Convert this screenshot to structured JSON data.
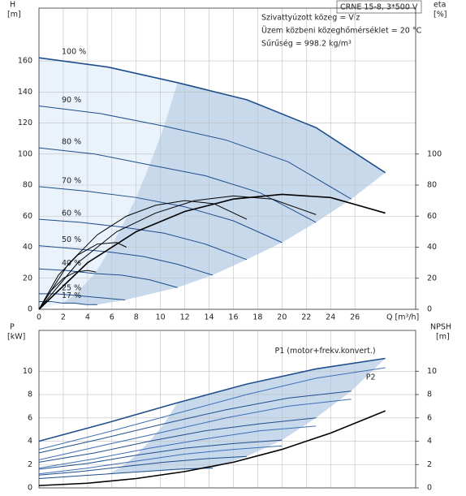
{
  "header": {
    "model": "CRNE 15-8, 3*500 V",
    "lines": [
      "Szivattyúzott közeg = Víz",
      "Üzem közbeni közeghőmérséklet = 20 °C",
      "Sűrűség = 998.2 kg/m³"
    ]
  },
  "chart_data": [
    {
      "type": "line",
      "x_label": "Q [m³/h]",
      "y_label": "H",
      "y_unit": "[m]",
      "y2_label": "eta",
      "y2_unit": "[%]",
      "xlim": [
        0,
        31
      ],
      "xticks": [
        0,
        2,
        4,
        6,
        8,
        10,
        12,
        14,
        16,
        18,
        20,
        22,
        24,
        26
      ],
      "ylim": [
        0,
        194
      ],
      "yticks": [
        0,
        20,
        40,
        60,
        80,
        100,
        120,
        140,
        160
      ],
      "y2lim": [
        0,
        194
      ],
      "y2ticks": [
        0,
        20,
        40,
        60,
        80,
        100
      ],
      "grid": true,
      "shaded_area": true,
      "series": [
        {
          "name": "100 %",
          "color": "#1f4e8c",
          "x": [
            0,
            5.7,
            11.4,
            17.1,
            22.8,
            28.5
          ],
          "values": [
            162,
            156,
            146,
            135,
            117,
            88
          ]
        },
        {
          "name": "90 %",
          "color": "#1f4e8c",
          "x": [
            0,
            5.1,
            10.3,
            15.4,
            20.5,
            25.7
          ],
          "values": [
            131,
            126,
            118,
            109,
            95,
            71
          ]
        },
        {
          "name": "80 %",
          "color": "#1f4e8c",
          "x": [
            0,
            4.6,
            9.1,
            13.7,
            18.2,
            22.8
          ],
          "values": [
            104,
            100,
            93,
            86,
            75,
            56
          ]
        },
        {
          "name": "70 %",
          "color": "#1f4e8c",
          "x": [
            0,
            4,
            8,
            12,
            16,
            20
          ],
          "values": [
            79,
            76,
            72,
            66,
            57,
            43
          ]
        },
        {
          "name": "60 %",
          "color": "#1f4e8c",
          "x": [
            0,
            3.4,
            6.8,
            10.3,
            13.7,
            17.1
          ],
          "values": [
            58,
            56,
            53,
            49,
            42,
            32
          ]
        },
        {
          "name": "50 %",
          "color": "#1f4e8c",
          "x": [
            0,
            2.9,
            5.7,
            8.6,
            11.4,
            14.3
          ],
          "values": [
            41,
            39,
            37,
            34,
            29,
            22
          ]
        },
        {
          "name": "40 %",
          "color": "#1f4e8c",
          "x": [
            0,
            2.3,
            4.6,
            6.8,
            9.1,
            11.4
          ],
          "values": [
            26,
            25,
            23,
            22,
            19,
            14
          ]
        },
        {
          "name": "25 %",
          "color": "#1f4e8c",
          "x": [
            0,
            1.4,
            2.9,
            4.3,
            5.7,
            7.1
          ],
          "values": [
            10,
            10,
            9,
            8,
            7,
            6
          ]
        },
        {
          "name": "17 %",
          "color": "#1f4e8c",
          "x": [
            0,
            1,
            1.9,
            2.9,
            3.9,
            4.8
          ],
          "values": [
            5,
            5,
            4,
            4,
            3,
            3
          ]
        },
        {
          "color": "#000000",
          "axis": "y2",
          "x": [
            0,
            4,
            8,
            12,
            16,
            20,
            24,
            28.5
          ],
          "values": [
            0,
            30,
            50,
            63,
            71,
            74,
            72,
            62
          ]
        },
        {
          "color": "#000000",
          "axis": "y2",
          "x": [
            0,
            3.2,
            6.4,
            9.6,
            12.8,
            16,
            19.2,
            22.8
          ],
          "values": [
            0,
            30,
            50,
            62,
            70,
            73,
            71,
            61
          ]
        },
        {
          "color": "#000000",
          "axis": "y2",
          "x": [
            0,
            2.4,
            4.8,
            7.2,
            9.6,
            12,
            14.4,
            17.1
          ],
          "values": [
            0,
            29,
            48,
            60,
            67,
            70,
            68,
            58
          ]
        },
        {
          "color": "#000000",
          "axis": "y2",
          "x": [
            0,
            1.6,
            3.2,
            4.8,
            6.4,
            7.2
          ],
          "values": [
            0,
            22,
            35,
            42,
            43,
            40
          ]
        },
        {
          "color": "#000000",
          "axis": "y2",
          "x": [
            0,
            1,
            2,
            3,
            4,
            4.7
          ],
          "values": [
            0,
            12,
            20,
            24,
            25,
            24
          ]
        }
      ]
    },
    {
      "type": "line",
      "y_label": "P",
      "y_unit": "[kW]",
      "y2_label": "NPSH",
      "y2_unit": "[m]",
      "xlim": [
        0,
        31
      ],
      "xticks": [
        0,
        2,
        4,
        6,
        8,
        10,
        12,
        14,
        16,
        18,
        20,
        22,
        24,
        26
      ],
      "ylim": [
        0,
        13.5
      ],
      "yticks": [
        0,
        2,
        4,
        6,
        8,
        10
      ],
      "y2lim": [
        0,
        13.5
      ],
      "y2ticks": [
        0,
        2,
        4,
        6,
        8,
        10
      ],
      "grid": true,
      "shaded_area": true,
      "series": [
        {
          "name": "P1 (motor+frekv.konvert.)",
          "color": "#1f4e8c",
          "x": [
            0,
            5.7,
            11.4,
            17.1,
            22.8,
            28.5
          ],
          "values": [
            4.0,
            5.6,
            7.3,
            8.9,
            10.2,
            11.1
          ]
        },
        {
          "name": "P2",
          "color": "#3d6fb6",
          "x": [
            0,
            5.7,
            11.4,
            17.1,
            22.8,
            28.5
          ],
          "values": [
            3.3,
            4.8,
            6.4,
            8.0,
            9.4,
            10.3
          ]
        },
        {
          "color": "#1f4e8c",
          "x": [
            0,
            5.1,
            10.3,
            15.4,
            20.5,
            25.7
          ],
          "values": [
            3.0,
            4.2,
            5.5,
            6.7,
            7.7,
            8.3
          ]
        },
        {
          "color": "#3d6fb6",
          "x": [
            0,
            5.1,
            10.3,
            15.4,
            20.5,
            25.7
          ],
          "values": [
            2.4,
            3.6,
            4.8,
            6.0,
            7.0,
            7.6
          ]
        },
        {
          "color": "#1f4e8c",
          "x": [
            0,
            4.6,
            9.1,
            13.7,
            18.2,
            22.8
          ],
          "values": [
            2.2,
            3.0,
            4.0,
            4.9,
            5.5,
            6.0
          ]
        },
        {
          "color": "#3d6fb6",
          "x": [
            0,
            4.6,
            9.1,
            13.7,
            18.2,
            22.8
          ],
          "values": [
            1.7,
            2.5,
            3.4,
            4.2,
            4.9,
            5.3
          ]
        },
        {
          "color": "#1f4e8c",
          "x": [
            0,
            4,
            8,
            12,
            16,
            20
          ],
          "values": [
            1.6,
            2.1,
            2.8,
            3.4,
            3.8,
            4.1
          ]
        },
        {
          "color": "#3d6fb6",
          "x": [
            0,
            4,
            8,
            12,
            16,
            20
          ],
          "values": [
            1.2,
            1.7,
            2.3,
            2.9,
            3.3,
            3.6
          ]
        },
        {
          "color": "#1f4e8c",
          "x": [
            0,
            3.4,
            6.8,
            10.3,
            13.7,
            17.1
          ],
          "values": [
            1.1,
            1.4,
            1.8,
            2.2,
            2.5,
            2.7
          ]
        },
        {
          "color": "#1f4e8c",
          "x": [
            0,
            2.9,
            5.7,
            8.6,
            11.4,
            14.3
          ],
          "values": [
            0.8,
            1.0,
            1.2,
            1.4,
            1.6,
            1.7
          ]
        },
        {
          "color": "#000000",
          "axis": "y2",
          "x": [
            0,
            4,
            8,
            12,
            16,
            20,
            24,
            28.5
          ],
          "values": [
            0.2,
            0.4,
            0.8,
            1.4,
            2.2,
            3.3,
            4.7,
            6.6
          ]
        }
      ]
    }
  ]
}
